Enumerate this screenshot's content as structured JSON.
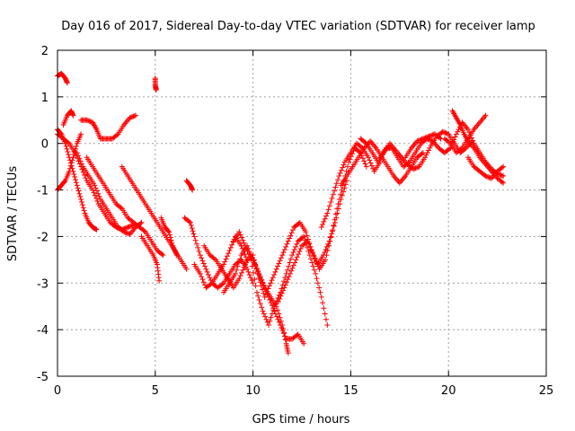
{
  "chart_data": {
    "type": "scatter",
    "title": "Day 016 of 2017, Sidereal Day-to-day VTEC variation (SDTVAR) for receiver lamp",
    "xlabel": "GPS time / hours",
    "ylabel": "SDTVAR / TECUs",
    "xlim": [
      0,
      25
    ],
    "ylim": [
      -5,
      2
    ],
    "xticks": [
      "0",
      "5",
      "10",
      "15",
      "20",
      "25"
    ],
    "yticks": [
      "2",
      "1",
      "0",
      "-1",
      "-2",
      "-3",
      "-4",
      "-5"
    ],
    "grid": true,
    "marker": "+",
    "color": "#ff0000",
    "tracks": [
      [
        [
          0.0,
          0.2
        ],
        [
          0.3,
          0.1
        ],
        [
          0.6,
          0.0
        ],
        [
          0.9,
          -0.2
        ],
        [
          1.2,
          -0.5
        ],
        [
          1.5,
          -0.8
        ],
        [
          1.8,
          -1.0
        ],
        [
          2.1,
          -1.3
        ],
        [
          2.4,
          -1.5
        ],
        [
          2.7,
          -1.7
        ],
        [
          3.0,
          -1.8
        ],
        [
          3.3,
          -1.85
        ],
        [
          3.6,
          -1.8
        ],
        [
          3.9,
          -1.75
        ]
      ],
      [
        [
          0.0,
          0.3
        ],
        [
          0.2,
          0.2
        ],
        [
          0.4,
          0.0
        ],
        [
          0.6,
          -0.3
        ],
        [
          0.8,
          -0.6
        ],
        [
          1.0,
          -0.9
        ],
        [
          1.2,
          -1.2
        ],
        [
          1.4,
          -1.5
        ],
        [
          1.6,
          -1.7
        ],
        [
          1.8,
          -1.8
        ],
        [
          2.0,
          -1.85
        ]
      ],
      [
        [
          0.0,
          -1.0
        ],
        [
          0.2,
          -0.9
        ],
        [
          0.4,
          -0.8
        ],
        [
          0.6,
          -0.6
        ],
        [
          0.8,
          -0.3
        ],
        [
          1.0,
          0.0
        ],
        [
          1.2,
          0.2
        ]
      ],
      [
        [
          0.0,
          1.45
        ],
        [
          0.2,
          1.5
        ],
        [
          0.4,
          1.4
        ],
        [
          0.5,
          1.3
        ]
      ],
      [
        [
          0.3,
          0.4
        ],
        [
          0.5,
          0.6
        ],
        [
          0.7,
          0.7
        ],
        [
          0.8,
          0.6
        ]
      ],
      [
        [
          1.2,
          0.5
        ],
        [
          1.5,
          0.5
        ],
        [
          1.8,
          0.45
        ],
        [
          2.0,
          0.3
        ],
        [
          2.2,
          0.1
        ],
        [
          2.5,
          0.1
        ],
        [
          2.8,
          0.1
        ],
        [
          3.1,
          0.2
        ],
        [
          3.4,
          0.4
        ],
        [
          3.7,
          0.55
        ],
        [
          4.0,
          0.6
        ]
      ],
      [
        [
          1.0,
          -0.2
        ],
        [
          1.3,
          -0.5
        ],
        [
          1.6,
          -0.7
        ],
        [
          1.9,
          -0.9
        ],
        [
          2.2,
          -1.2
        ],
        [
          2.5,
          -1.4
        ],
        [
          2.8,
          -1.6
        ],
        [
          3.1,
          -1.8
        ],
        [
          3.4,
          -1.9
        ],
        [
          3.7,
          -1.95
        ],
        [
          4.0,
          -1.8
        ],
        [
          4.3,
          -1.7
        ]
      ],
      [
        [
          1.5,
          -0.3
        ],
        [
          1.8,
          -0.5
        ],
        [
          2.1,
          -0.7
        ],
        [
          2.4,
          -0.9
        ],
        [
          2.7,
          -1.1
        ],
        [
          3.0,
          -1.3
        ],
        [
          3.3,
          -1.4
        ],
        [
          3.6,
          -1.6
        ],
        [
          3.9,
          -1.7
        ],
        [
          4.2,
          -1.8
        ],
        [
          4.5,
          -1.9
        ],
        [
          4.8,
          -2.1
        ],
        [
          5.1,
          -2.3
        ],
        [
          5.4,
          -2.4
        ]
      ],
      [
        [
          3.3,
          -0.5
        ],
        [
          3.6,
          -0.7
        ],
        [
          3.9,
          -0.9
        ],
        [
          4.2,
          -1.1
        ],
        [
          4.5,
          -1.3
        ],
        [
          4.8,
          -1.5
        ],
        [
          5.1,
          -1.7
        ],
        [
          5.4,
          -1.9
        ],
        [
          5.7,
          -2.1
        ],
        [
          6.0,
          -2.3
        ],
        [
          6.3,
          -2.5
        ],
        [
          6.6,
          -2.7
        ]
      ],
      [
        [
          4.3,
          -2.0
        ],
        [
          4.6,
          -2.2
        ],
        [
          4.9,
          -2.4
        ],
        [
          5.1,
          -2.6
        ],
        [
          5.2,
          -2.95
        ]
      ],
      [
        [
          5.0,
          1.4
        ],
        [
          5.0,
          1.25
        ],
        [
          5.05,
          1.15
        ]
      ],
      [
        [
          5.3,
          -1.6
        ],
        [
          5.5,
          -1.8
        ],
        [
          5.7,
          -1.9
        ],
        [
          5.9,
          -2.2
        ],
        [
          6.1,
          -2.4
        ]
      ],
      [
        [
          6.6,
          -0.8
        ],
        [
          6.8,
          -0.9
        ],
        [
          6.9,
          -1.0
        ]
      ],
      [
        [
          6.5,
          -1.6
        ],
        [
          6.8,
          -1.7
        ],
        [
          7.0,
          -2.0
        ],
        [
          7.3,
          -2.4
        ],
        [
          7.6,
          -2.7
        ],
        [
          7.9,
          -3.0
        ],
        [
          8.2,
          -3.1
        ],
        [
          8.5,
          -3.0
        ],
        [
          8.8,
          -2.8
        ],
        [
          9.1,
          -2.6
        ],
        [
          9.4,
          -2.5
        ],
        [
          9.7,
          -2.7
        ],
        [
          10.0,
          -3.0
        ]
      ],
      [
        [
          7.0,
          -2.6
        ],
        [
          7.3,
          -2.8
        ],
        [
          7.6,
          -3.1
        ],
        [
          7.9,
          -3.0
        ],
        [
          8.2,
          -2.8
        ],
        [
          8.5,
          -2.6
        ],
        [
          8.8,
          -2.3
        ],
        [
          9.1,
          -2.0
        ],
        [
          9.4,
          -2.2
        ],
        [
          9.7,
          -2.5
        ]
      ],
      [
        [
          7.5,
          -2.2
        ],
        [
          7.8,
          -2.4
        ],
        [
          8.1,
          -2.5
        ],
        [
          8.4,
          -2.7
        ],
        [
          8.7,
          -2.9
        ],
        [
          9.0,
          -3.1
        ],
        [
          9.3,
          -2.9
        ],
        [
          9.6,
          -2.6
        ],
        [
          9.9,
          -2.4
        ],
        [
          10.2,
          -2.7
        ],
        [
          10.5,
          -3.0
        ],
        [
          10.8,
          -3.3
        ],
        [
          11.1,
          -3.6
        ],
        [
          11.4,
          -3.9
        ],
        [
          11.7,
          -4.2
        ],
        [
          12.0,
          -4.2
        ],
        [
          12.3,
          -4.1
        ],
        [
          12.6,
          -4.3
        ]
      ],
      [
        [
          8.5,
          -3.2
        ],
        [
          8.8,
          -3.0
        ],
        [
          9.1,
          -2.8
        ],
        [
          9.4,
          -2.4
        ],
        [
          9.7,
          -2.2
        ],
        [
          10.0,
          -2.5
        ],
        [
          10.3,
          -2.8
        ],
        [
          10.6,
          -3.1
        ],
        [
          10.9,
          -3.3
        ],
        [
          11.2,
          -3.5
        ],
        [
          11.5,
          -3.9
        ],
        [
          11.7,
          -4.3
        ],
        [
          11.8,
          -4.5
        ]
      ],
      [
        [
          9.0,
          -2.1
        ],
        [
          9.3,
          -1.9
        ],
        [
          9.6,
          -2.2
        ],
        [
          9.9,
          -2.5
        ],
        [
          10.2,
          -3.2
        ],
        [
          10.5,
          -3.6
        ],
        [
          10.8,
          -3.9
        ],
        [
          11.1,
          -3.5
        ],
        [
          11.4,
          -3.2
        ],
        [
          11.7,
          -2.8
        ],
        [
          12.0,
          -2.4
        ],
        [
          12.3,
          -2.1
        ],
        [
          12.6,
          -2.0
        ],
        [
          12.9,
          -2.4
        ],
        [
          13.2,
          -2.8
        ],
        [
          13.5,
          -3.3
        ],
        [
          13.8,
          -3.9
        ]
      ],
      [
        [
          10.0,
          -2.4
        ],
        [
          10.3,
          -2.9
        ],
        [
          10.6,
          -3.3
        ],
        [
          10.9,
          -3.0
        ],
        [
          11.2,
          -2.7
        ],
        [
          11.5,
          -2.4
        ],
        [
          11.8,
          -2.1
        ],
        [
          12.1,
          -1.8
        ],
        [
          12.4,
          -1.7
        ],
        [
          12.7,
          -1.9
        ],
        [
          13.0,
          -2.3
        ],
        [
          13.3,
          -2.6
        ],
        [
          13.6,
          -2.4
        ],
        [
          13.9,
          -2.1
        ],
        [
          14.2,
          -1.7
        ],
        [
          14.5,
          -1.2
        ],
        [
          14.8,
          -0.8
        ]
      ],
      [
        [
          11.3,
          -3.4
        ],
        [
          11.6,
          -3.1
        ],
        [
          11.9,
          -2.8
        ],
        [
          12.2,
          -2.5
        ],
        [
          12.5,
          -2.2
        ],
        [
          12.8,
          -2.1
        ],
        [
          13.1,
          -2.4
        ],
        [
          13.4,
          -2.7
        ],
        [
          13.7,
          -2.5
        ],
        [
          14.0,
          -2.0
        ],
        [
          14.3,
          -1.4
        ],
        [
          14.6,
          -0.9
        ],
        [
          14.9,
          -0.4
        ],
        [
          15.2,
          -0.1
        ],
        [
          15.5,
          -0.2
        ],
        [
          15.8,
          -0.5
        ]
      ],
      [
        [
          13.5,
          -1.8
        ],
        [
          13.8,
          -1.5
        ],
        [
          14.1,
          -1.1
        ],
        [
          14.4,
          -0.7
        ],
        [
          14.7,
          -0.4
        ],
        [
          15.0,
          -0.2
        ],
        [
          15.3,
          0.0
        ],
        [
          15.6,
          -0.1
        ],
        [
          15.9,
          -0.3
        ],
        [
          16.2,
          -0.6
        ],
        [
          16.5,
          -0.4
        ]
      ],
      [
        [
          14.5,
          -0.9
        ],
        [
          14.8,
          -0.7
        ],
        [
          15.1,
          -0.5
        ],
        [
          15.4,
          -0.3
        ],
        [
          15.7,
          -0.1
        ],
        [
          16.0,
          0.05
        ],
        [
          16.3,
          -0.1
        ],
        [
          16.6,
          -0.3
        ],
        [
          16.9,
          -0.5
        ],
        [
          17.2,
          -0.7
        ],
        [
          17.5,
          -0.85
        ],
        [
          17.8,
          -0.7
        ],
        [
          18.1,
          -0.5
        ],
        [
          18.4,
          -0.3
        ],
        [
          18.7,
          -0.2
        ]
      ],
      [
        [
          15.5,
          0.1
        ],
        [
          15.8,
          0.0
        ],
        [
          16.1,
          -0.2
        ],
        [
          16.4,
          -0.4
        ],
        [
          16.7,
          -0.2
        ],
        [
          17.0,
          0.0
        ],
        [
          17.3,
          -0.15
        ],
        [
          17.6,
          -0.3
        ],
        [
          17.9,
          -0.45
        ],
        [
          18.2,
          -0.55
        ],
        [
          18.5,
          -0.5
        ],
        [
          18.8,
          -0.3
        ],
        [
          19.1,
          -0.05
        ],
        [
          19.4,
          0.15
        ],
        [
          19.7,
          0.25
        ],
        [
          20.0,
          0.2
        ],
        [
          20.3,
          0.0
        ],
        [
          20.6,
          -0.2
        ],
        [
          20.9,
          -0.1
        ],
        [
          21.2,
          0.05
        ]
      ],
      [
        [
          16.5,
          -0.3
        ],
        [
          16.8,
          -0.1
        ],
        [
          17.1,
          -0.1
        ],
        [
          17.4,
          -0.3
        ],
        [
          17.7,
          -0.5
        ],
        [
          18.0,
          -0.4
        ],
        [
          18.3,
          -0.2
        ],
        [
          18.6,
          0.0
        ],
        [
          18.9,
          0.1
        ],
        [
          19.2,
          0.05
        ],
        [
          19.5,
          -0.1
        ],
        [
          19.8,
          -0.2
        ],
        [
          20.1,
          -0.1
        ],
        [
          20.4,
          0.2
        ],
        [
          20.7,
          0.45
        ],
        [
          21.0,
          0.3
        ],
        [
          21.3,
          0.0
        ],
        [
          21.6,
          -0.2
        ],
        [
          21.9,
          -0.4
        ],
        [
          22.2,
          -0.55
        ],
        [
          22.5,
          -0.65
        ],
        [
          22.8,
          -0.7
        ]
      ],
      [
        [
          20.2,
          0.7
        ],
        [
          20.4,
          0.55
        ],
        [
          20.6,
          0.4
        ],
        [
          20.8,
          0.2
        ],
        [
          21.0,
          0.05
        ],
        [
          21.3,
          -0.1
        ],
        [
          21.6,
          -0.3
        ],
        [
          21.9,
          -0.45
        ],
        [
          22.2,
          -0.6
        ],
        [
          22.5,
          -0.75
        ],
        [
          22.8,
          -0.85
        ]
      ],
      [
        [
          19.8,
          0.1
        ],
        [
          20.1,
          0.0
        ],
        [
          20.4,
          -0.2
        ],
        [
          20.7,
          -0.1
        ],
        [
          21.0,
          0.1
        ],
        [
          21.3,
          0.3
        ],
        [
          21.6,
          0.45
        ],
        [
          21.9,
          0.6
        ]
      ],
      [
        [
          21.0,
          -0.3
        ],
        [
          21.3,
          -0.5
        ],
        [
          21.6,
          -0.6
        ],
        [
          21.9,
          -0.7
        ],
        [
          22.2,
          -0.75
        ],
        [
          22.5,
          -0.6
        ],
        [
          22.8,
          -0.5
        ]
      ],
      [
        [
          17.8,
          -0.3
        ],
        [
          18.1,
          -0.1
        ],
        [
          18.4,
          0.05
        ],
        [
          18.7,
          0.1
        ],
        [
          19.0,
          0.15
        ],
        [
          19.3,
          0.2
        ],
        [
          19.6,
          0.1
        ]
      ]
    ]
  }
}
